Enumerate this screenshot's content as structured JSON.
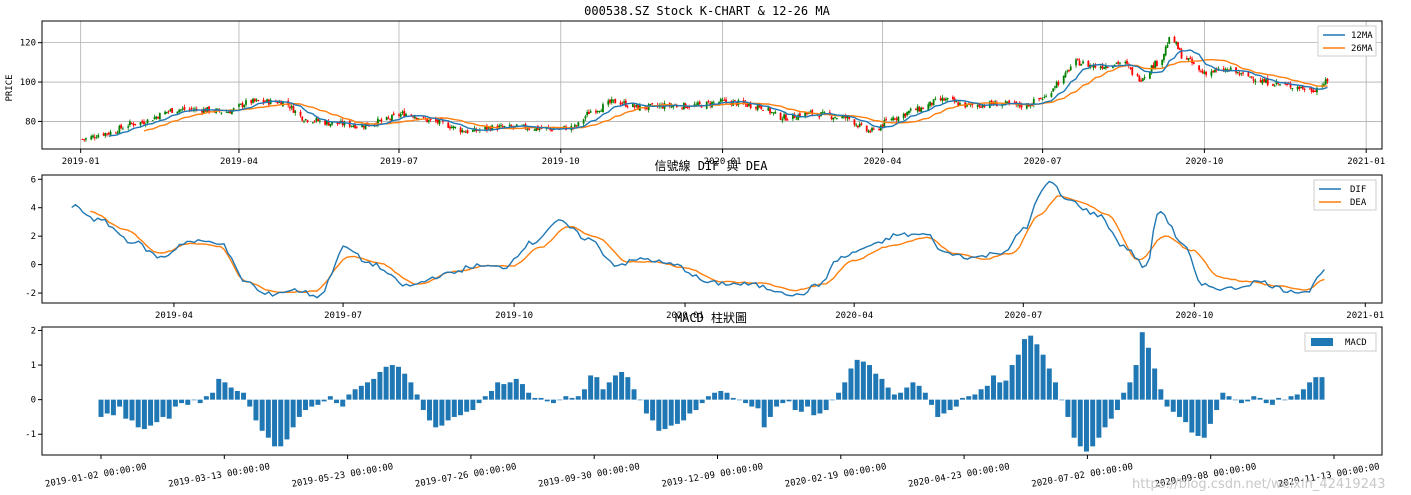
{
  "colors": {
    "ma12": "#1f77b4",
    "ma26": "#ff7f0e",
    "up": "#008000",
    "down": "#ff0000",
    "macd": "#1f77b4",
    "grid": "#b0b0b0"
  },
  "watermark": "https://blog.csdn.net/weixin_42419243",
  "chart_data": [
    {
      "type": "candlestick",
      "title": "000538.SZ Stock K-CHART & 12-26 MA",
      "ylabel": "PRICE",
      "ylim": [
        66,
        131
      ],
      "yticks": [
        80,
        100,
        120
      ],
      "xlim": [
        "2018-12-10",
        "2021-01-10"
      ],
      "xticks": [
        "2019-01",
        "2019-04",
        "2019-07",
        "2019-10",
        "2020-01",
        "2020-04",
        "2020-07",
        "2020-10",
        "2021-01"
      ],
      "grid": true,
      "legend": {
        "position": "top-right",
        "entries": [
          "12MA",
          "26MA"
        ]
      },
      "close_anchors": [
        [
          "2019-01-02",
          71
        ],
        [
          "2019-01-15",
          74
        ],
        [
          "2019-02-01",
          79
        ],
        [
          "2019-02-25",
          86
        ],
        [
          "2019-03-10",
          86
        ],
        [
          "2019-03-25",
          85
        ],
        [
          "2019-04-08",
          90
        ],
        [
          "2019-04-25",
          90
        ],
        [
          "2019-05-10",
          81
        ],
        [
          "2019-05-25",
          79
        ],
        [
          "2019-06-10",
          78
        ],
        [
          "2019-06-20",
          80
        ],
        [
          "2019-07-05",
          84
        ],
        [
          "2019-07-20",
          80
        ],
        [
          "2019-08-10",
          75
        ],
        [
          "2019-08-25",
          77
        ],
        [
          "2019-09-10",
          77
        ],
        [
          "2019-09-25",
          76
        ],
        [
          "2019-10-08",
          77
        ],
        [
          "2019-10-20",
          86
        ],
        [
          "2019-11-01",
          90
        ],
        [
          "2019-11-15",
          87
        ],
        [
          "2019-12-01",
          88
        ],
        [
          "2019-12-15",
          88
        ],
        [
          "2020-01-02",
          90
        ],
        [
          "2020-01-20",
          88
        ],
        [
          "2020-02-05",
          82
        ],
        [
          "2020-02-20",
          84
        ],
        [
          "2020-03-10",
          82
        ],
        [
          "2020-03-25",
          75
        ],
        [
          "2020-04-08",
          82
        ],
        [
          "2020-04-20",
          86
        ],
        [
          "2020-05-05",
          91
        ],
        [
          "2020-05-20",
          88
        ],
        [
          "2020-06-05",
          89
        ],
        [
          "2020-06-20",
          88
        ],
        [
          "2020-07-02",
          92
        ],
        [
          "2020-07-10",
          100
        ],
        [
          "2020-07-20",
          110
        ],
        [
          "2020-08-01",
          108
        ],
        [
          "2020-08-15",
          110
        ],
        [
          "2020-08-25",
          102
        ],
        [
          "2020-09-05",
          110
        ],
        [
          "2020-09-12",
          122
        ],
        [
          "2020-09-20",
          112
        ],
        [
          "2020-09-30",
          105
        ],
        [
          "2020-10-15",
          106
        ],
        [
          "2020-10-25",
          103
        ],
        [
          "2020-11-05",
          100
        ],
        [
          "2020-11-20",
          98
        ],
        [
          "2020-12-01",
          96
        ],
        [
          "2020-12-10",
          100
        ]
      ]
    },
    {
      "type": "line",
      "title": "信號線 DIF 與 DEA",
      "ylim": [
        -2.7,
        6.3
      ],
      "yticks": [
        -2,
        0,
        2,
        4,
        6
      ],
      "xlim": [
        "2019-01-20",
        "2021-01-10"
      ],
      "xticks": [
        "2019-04",
        "2019-07",
        "2019-10",
        "2020-01",
        "2020-04",
        "2020-07",
        "2020-10",
        "2021-01"
      ],
      "grid": false,
      "legend": {
        "position": "top-right",
        "entries": [
          "DIF",
          "DEA"
        ]
      },
      "series": [
        {
          "name": "DIF",
          "anchors": [
            [
              "2019-02-05",
              4.1
            ],
            [
              "2019-02-20",
              3.1
            ],
            [
              "2019-03-10",
              1.6
            ],
            [
              "2019-03-25",
              0.5
            ],
            [
              "2019-04-08",
              1.6
            ],
            [
              "2019-04-25",
              1.6
            ],
            [
              "2019-05-10",
              -1.2
            ],
            [
              "2019-05-20",
              -2.1
            ],
            [
              "2019-06-05",
              -1.8
            ],
            [
              "2019-06-18",
              -2.2
            ],
            [
              "2019-07-02",
              1.2
            ],
            [
              "2019-07-15",
              0.1
            ],
            [
              "2019-08-05",
              -1.5
            ],
            [
              "2019-08-25",
              -0.7
            ],
            [
              "2019-09-10",
              -0.1
            ],
            [
              "2019-09-25",
              -0.2
            ],
            [
              "2019-10-10",
              1.5
            ],
            [
              "2019-10-25",
              3.0
            ],
            [
              "2019-11-10",
              1.8
            ],
            [
              "2019-11-25",
              0.0
            ],
            [
              "2019-12-10",
              0.4
            ],
            [
              "2019-12-25",
              0.0
            ],
            [
              "2020-01-15",
              -1.3
            ],
            [
              "2020-02-05",
              -1.4
            ],
            [
              "2020-02-20",
              -1.8
            ],
            [
              "2020-03-01",
              -2.2
            ],
            [
              "2020-03-12",
              -1.5
            ],
            [
              "2020-03-25",
              0.5
            ],
            [
              "2020-04-10",
              1.3
            ],
            [
              "2020-04-25",
              2.1
            ],
            [
              "2020-05-10",
              2.1
            ],
            [
              "2020-05-20",
              0.8
            ],
            [
              "2020-06-05",
              0.5
            ],
            [
              "2020-06-20",
              0.9
            ],
            [
              "2020-07-02",
              2.5
            ],
            [
              "2020-07-10",
              5.0
            ],
            [
              "2020-07-15",
              5.8
            ],
            [
              "2020-07-25",
              4.5
            ],
            [
              "2020-08-10",
              3.5
            ],
            [
              "2020-08-25",
              1.2
            ],
            [
              "2020-09-05",
              -0.2
            ],
            [
              "2020-09-12",
              3.8
            ],
            [
              "2020-09-25",
              1.5
            ],
            [
              "2020-10-05",
              -1.5
            ],
            [
              "2020-10-20",
              -1.7
            ],
            [
              "2020-11-05",
              -1.2
            ],
            [
              "2020-11-20",
              -1.8
            ],
            [
              "2020-12-01",
              -1.9
            ],
            [
              "2020-12-10",
              -0.3
            ]
          ]
        },
        {
          "name": "DEA",
          "anchors": [
            [
              "2019-02-15",
              3.7
            ],
            [
              "2019-03-05",
              2.5
            ],
            [
              "2019-03-25",
              0.8
            ],
            [
              "2019-04-10",
              1.5
            ],
            [
              "2019-04-25",
              1.3
            ],
            [
              "2019-05-10",
              -1.2
            ],
            [
              "2019-05-25",
              -1.9
            ],
            [
              "2019-06-15",
              -1.9
            ],
            [
              "2019-07-05",
              0.6
            ],
            [
              "2019-07-20",
              0.1
            ],
            [
              "2019-08-10",
              -1.4
            ],
            [
              "2019-08-30",
              -0.5
            ],
            [
              "2019-09-15",
              -0.1
            ],
            [
              "2019-09-30",
              -0.1
            ],
            [
              "2019-10-15",
              1.2
            ],
            [
              "2019-10-30",
              2.7
            ],
            [
              "2019-11-15",
              1.9
            ],
            [
              "2019-12-01",
              0.2
            ],
            [
              "2019-12-15",
              0.2
            ],
            [
              "2020-01-01",
              -0.2
            ],
            [
              "2020-01-20",
              -1.2
            ],
            [
              "2020-02-10",
              -1.3
            ],
            [
              "2020-03-01",
              -1.8
            ],
            [
              "2020-03-15",
              -1.4
            ],
            [
              "2020-04-01",
              0.3
            ],
            [
              "2020-04-20",
              1.3
            ],
            [
              "2020-05-10",
              1.9
            ],
            [
              "2020-05-25",
              0.8
            ],
            [
              "2020-06-10",
              0.4
            ],
            [
              "2020-06-25",
              0.8
            ],
            [
              "2020-07-10",
              3.5
            ],
            [
              "2020-07-20",
              4.8
            ],
            [
              "2020-08-01",
              4.4
            ],
            [
              "2020-08-15",
              3.5
            ],
            [
              "2020-09-01",
              0.3
            ],
            [
              "2020-09-15",
              2.0
            ],
            [
              "2020-09-30",
              1.0
            ],
            [
              "2020-10-15",
              -0.9
            ],
            [
              "2020-10-30",
              -1.2
            ],
            [
              "2020-11-15",
              -1.5
            ],
            [
              "2020-12-01",
              -1.8
            ],
            [
              "2020-12-10",
              -1.0
            ]
          ]
        }
      ]
    },
    {
      "type": "bar",
      "title": "MACD 柱狀圖",
      "ylim": [
        -1.6,
        2.1
      ],
      "yticks": [
        -1,
        0,
        1,
        2
      ],
      "grid": false,
      "legend": {
        "position": "top-right",
        "entries": [
          "MACD"
        ]
      },
      "xticks": [
        "2019-01-02 00:00:00",
        "2019-03-13 00:00:00",
        "2019-05-23 00:00:00",
        "2019-07-26 00:00:00",
        "2019-09-30 00:00:00",
        "2019-12-09 00:00:00",
        "2020-02-19 00:00:00",
        "2020-04-23 00:00:00",
        "2020-07-02 00:00:00",
        "2020-09-08 00:00:00",
        "2020-11-13 00:00:00"
      ],
      "values": [
        -0.5,
        -0.4,
        -0.45,
        -0.2,
        -0.55,
        -0.6,
        -0.8,
        -0.85,
        -0.75,
        -0.65,
        -0.5,
        -0.55,
        -0.2,
        -0.1,
        -0.15,
        0.0,
        -0.1,
        0.1,
        0.2,
        0.6,
        0.5,
        0.35,
        0.25,
        0.2,
        -0.2,
        -0.6,
        -0.9,
        -1.1,
        -1.35,
        -1.35,
        -1.15,
        -0.8,
        -0.5,
        -0.3,
        -0.2,
        -0.15,
        -0.05,
        0.1,
        -0.1,
        -0.2,
        0.15,
        0.3,
        0.4,
        0.5,
        0.6,
        0.8,
        0.95,
        1.0,
        0.95,
        0.75,
        0.5,
        0.15,
        -0.3,
        -0.6,
        -0.8,
        -0.75,
        -0.6,
        -0.5,
        -0.45,
        -0.35,
        -0.3,
        -0.1,
        0.1,
        0.25,
        0.5,
        0.45,
        0.5,
        0.6,
        0.45,
        0.2,
        0.05,
        0.05,
        -0.05,
        -0.1,
        0.0,
        0.1,
        0.05,
        0.1,
        0.3,
        0.7,
        0.65,
        0.3,
        0.5,
        0.7,
        0.8,
        0.65,
        0.3,
        0.0,
        -0.4,
        -0.6,
        -0.9,
        -0.85,
        -0.75,
        -0.7,
        -0.6,
        -0.4,
        -0.3,
        -0.1,
        0.1,
        0.2,
        0.25,
        0.2,
        0.05,
        0.0,
        -0.1,
        -0.2,
        -0.25,
        -0.8,
        -0.5,
        -0.2,
        -0.1,
        -0.05,
        -0.3,
        -0.35,
        -0.2,
        -0.45,
        -0.4,
        -0.3,
        0.0,
        0.2,
        0.5,
        0.9,
        1.15,
        1.1,
        1.0,
        0.75,
        0.6,
        0.35,
        0.15,
        0.2,
        0.35,
        0.5,
        0.4,
        0.2,
        -0.15,
        -0.5,
        -0.4,
        -0.3,
        -0.2,
        0.05,
        0.1,
        0.15,
        0.3,
        0.4,
        0.7,
        0.5,
        0.55,
        1.0,
        1.3,
        1.75,
        1.85,
        1.6,
        1.3,
        0.9,
        0.5,
        0.0,
        -0.5,
        -1.1,
        -1.35,
        -1.5,
        -1.35,
        -1.1,
        -0.8,
        -0.55,
        -0.3,
        0.2,
        0.5,
        1.0,
        1.95,
        1.5,
        0.9,
        0.3,
        -0.2,
        -0.35,
        -0.5,
        -0.65,
        -0.95,
        -1.05,
        -1.1,
        -0.7,
        -0.3,
        0.2,
        0.1,
        0.0,
        -0.1,
        -0.05,
        0.1,
        0.05,
        -0.1,
        -0.15,
        0.05,
        0.0,
        0.1,
        0.15,
        0.3,
        0.5,
        0.65,
        0.65
      ]
    }
  ]
}
